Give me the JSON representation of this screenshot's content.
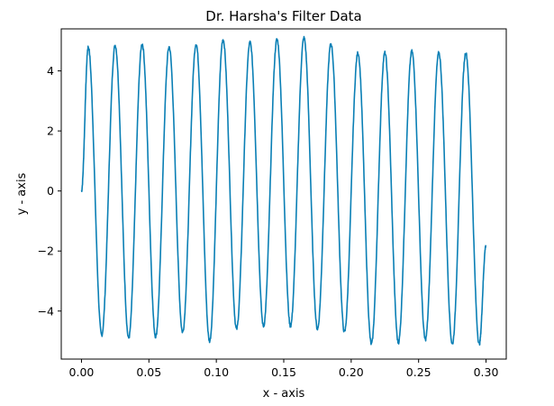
{
  "chart_data": {
    "type": "line",
    "title": "Dr. Harsha's Filter Data",
    "xlabel": "x - axis",
    "ylabel": "y - axis",
    "xlim": [
      -0.015,
      0.315
    ],
    "ylim": [
      -5.6,
      5.4
    ],
    "xticks": [
      0.0,
      0.05,
      0.1,
      0.15,
      0.2,
      0.25,
      0.3
    ],
    "xtick_labels": [
      "0.00",
      "0.05",
      "0.10",
      "0.15",
      "0.20",
      "0.25",
      "0.30"
    ],
    "yticks": [
      -4,
      -2,
      0,
      2,
      4
    ],
    "ytick_labels": [
      "−4",
      "−2",
      "0",
      "2",
      "4"
    ],
    "grid": false,
    "series": [
      {
        "color": "#0a7fb5",
        "start": [
          0.0,
          0.0
        ],
        "end": [
          0.3,
          -1.8
        ],
        "extrema": [
          [
            0.005,
            4.8
          ],
          [
            0.015,
            -4.8
          ],
          [
            0.025,
            4.85
          ],
          [
            0.035,
            -4.9
          ],
          [
            0.045,
            4.9
          ],
          [
            0.055,
            -4.85
          ],
          [
            0.065,
            4.8
          ],
          [
            0.075,
            -4.7
          ],
          [
            0.085,
            4.9
          ],
          [
            0.095,
            -5.0
          ],
          [
            0.105,
            5.05
          ],
          [
            0.115,
            -4.6
          ],
          [
            0.125,
            4.95
          ],
          [
            0.135,
            -4.5
          ],
          [
            0.145,
            5.05
          ],
          [
            0.155,
            -4.5
          ],
          [
            0.165,
            5.1
          ],
          [
            0.175,
            -4.6
          ],
          [
            0.185,
            4.9
          ],
          [
            0.195,
            -4.7
          ],
          [
            0.205,
            4.6
          ],
          [
            0.215,
            -5.1
          ],
          [
            0.225,
            4.6
          ],
          [
            0.235,
            -5.05
          ],
          [
            0.245,
            4.65
          ],
          [
            0.255,
            -4.95
          ],
          [
            0.265,
            4.6
          ],
          [
            0.275,
            -5.1
          ],
          [
            0.285,
            4.6
          ],
          [
            0.295,
            -5.1
          ]
        ]
      }
    ]
  }
}
